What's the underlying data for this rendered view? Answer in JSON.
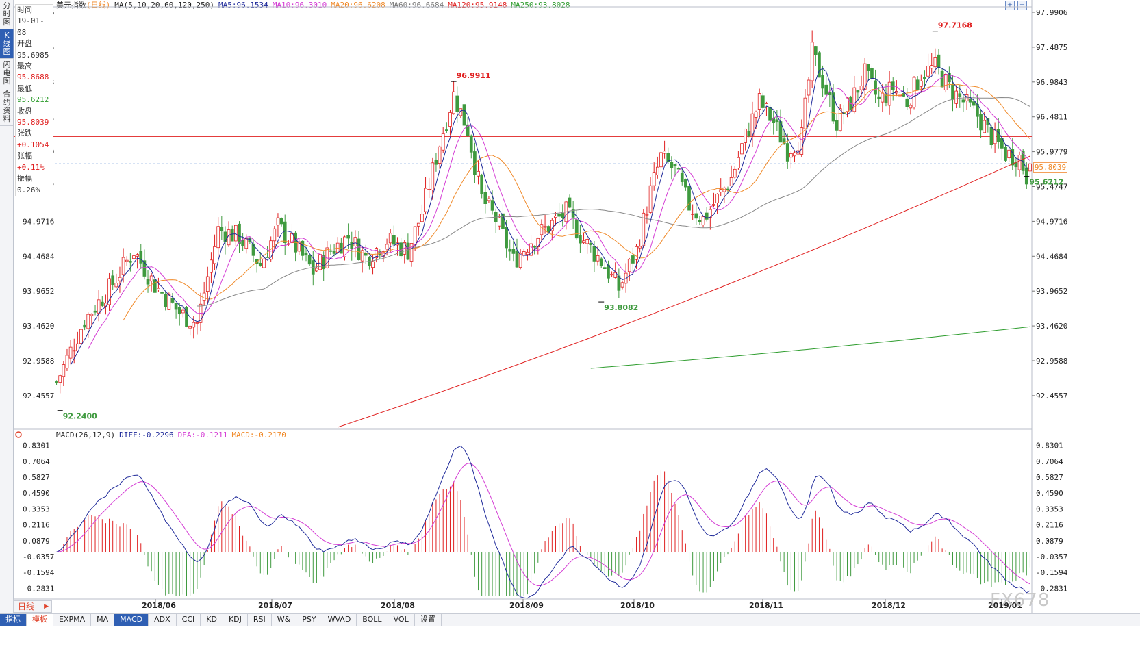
{
  "header": {
    "title": "美元指数",
    "period_tag": "(日线)",
    "ma_legend": [
      {
        "text": "MA(5,10,20,60,120,250)",
        "color": "#222222"
      },
      {
        "text": "MA5:96.1534",
        "color": "#1f2a9a"
      },
      {
        "text": "MA10:96.3010",
        "color": "#d43bd4"
      },
      {
        "text": "MA20:96.6208",
        "color": "#f08a2a"
      },
      {
        "text": "MA60:96.6684",
        "color": "#777777"
      },
      {
        "text": "MA120:95.9148",
        "color": "#e02020"
      },
      {
        "text": "MA250:93.8028",
        "color": "#2f9d2f"
      }
    ]
  },
  "left_tabs": [
    {
      "label": "分时图",
      "active": false
    },
    {
      "label": "K线图",
      "active": true
    },
    {
      "label": "闪电图",
      "active": false
    },
    {
      "label": "合约资料",
      "active": false
    }
  ],
  "info_panel": {
    "time_label": "时间",
    "time_value": "19-01-08",
    "open_label": "开盘",
    "open_value": "95.6985",
    "high_label": "最高",
    "high_value": "95.8688",
    "low_label": "最低",
    "low_value": "95.6212",
    "close_label": "收盘",
    "close_value": "95.8039",
    "change_label": "张跌",
    "change_value": "+0.1054",
    "pct_label": "张幅",
    "pct_value": "+0.11%",
    "amp_label": "振幅",
    "amp_value": "0.26%"
  },
  "price_tag": "95.8039",
  "macd_legend": [
    {
      "text": "MACD(26,12,9)",
      "color": "#222222"
    },
    {
      "text": "DIFF:-0.2296",
      "color": "#1f2a9a"
    },
    {
      "text": "DEA:-0.1211",
      "color": "#d43bd4"
    },
    {
      "text": "MACD:-0.2170",
      "color": "#f08a2a"
    }
  ],
  "period_selector": "日线",
  "bottom_tabs": [
    {
      "label": "指标",
      "style": "sel1"
    },
    {
      "label": "模板",
      "style": "sel2"
    },
    {
      "label": "EXPMA",
      "style": ""
    },
    {
      "label": "MA",
      "style": ""
    },
    {
      "label": "MACD",
      "style": "sel3"
    },
    {
      "label": "ADX",
      "style": ""
    },
    {
      "label": "CCI",
      "style": ""
    },
    {
      "label": "KD",
      "style": ""
    },
    {
      "label": "KDJ",
      "style": ""
    },
    {
      "label": "RSI",
      "style": ""
    },
    {
      "label": "W&",
      "style": ""
    },
    {
      "label": "PSY",
      "style": ""
    },
    {
      "label": "WVAD",
      "style": ""
    },
    {
      "label": "BOLL",
      "style": ""
    },
    {
      "label": "VOL",
      "style": ""
    },
    {
      "label": "设置",
      "style": ""
    }
  ],
  "watermark": "FX678",
  "chart_data": {
    "type": "candlestick",
    "colors": {
      "up": "#e02020",
      "down": "#3f9a3f",
      "ma5": "#1f2a9a",
      "ma10": "#d43bd4",
      "ma20": "#f08a2a",
      "ma60": "#888888",
      "ma120": "#e02020",
      "ma250": "#2f9d2f",
      "resistance": "#e02020"
    },
    "price_axis_ticks": [
      "97.9906",
      "97.4875",
      "96.9843",
      "96.4811",
      "95.9779",
      "95.4747",
      "94.9716",
      "94.4684",
      "93.9652",
      "93.4620",
      "92.9588",
      "92.4557"
    ],
    "macd_axis_ticks": [
      "0.8301",
      "0.7064",
      "0.5827",
      "0.4590",
      "0.3353",
      "0.2116",
      "0.0879",
      "-0.0357",
      "-0.1594",
      "-0.2831"
    ],
    "x_tick_labels": [
      "2018/06",
      "2018/07",
      "2018/08",
      "2018/09",
      "2018/10",
      "2018/11",
      "2018/12",
      "2019/01"
    ],
    "price_range": [
      91.98,
      98.05
    ],
    "macd_range": [
      -0.34,
      0.86
    ],
    "annotations": [
      {
        "text": "92.2400",
        "value": 92.24,
        "kind": "low"
      },
      {
        "text": "96.9911",
        "value": 96.9911,
        "kind": "high"
      },
      {
        "text": "93.8082",
        "value": 93.8082,
        "kind": "low"
      },
      {
        "text": "97.7168",
        "value": 97.7168,
        "kind": "high"
      },
      {
        "text": "95.6212",
        "value": 95.6212,
        "kind": "low"
      }
    ],
    "resistance_level": 96.2,
    "last_close": 95.8039,
    "close_path": [
      [
        0,
        92.65
      ],
      [
        8,
        93.55
      ],
      [
        15,
        94.0
      ],
      [
        22,
        94.55
      ],
      [
        28,
        94.05
      ],
      [
        35,
        93.65
      ],
      [
        40,
        93.5
      ],
      [
        46,
        94.85
      ],
      [
        52,
        94.75
      ],
      [
        58,
        94.35
      ],
      [
        63,
        94.9
      ],
      [
        68,
        94.6
      ],
      [
        73,
        94.25
      ],
      [
        78,
        94.55
      ],
      [
        83,
        94.75
      ],
      [
        88,
        94.45
      ],
      [
        94,
        94.7
      ],
      [
        100,
        94.55
      ],
      [
        104,
        95.1
      ],
      [
        109,
        96.1
      ],
      [
        113,
        96.8
      ],
      [
        117,
        96.3
      ],
      [
        121,
        95.3
      ],
      [
        125,
        95.0
      ],
      [
        130,
        94.4
      ],
      [
        135,
        94.7
      ],
      [
        140,
        94.9
      ],
      [
        145,
        95.1
      ],
      [
        150,
        94.7
      ],
      [
        155,
        94.4
      ],
      [
        160,
        94.0
      ],
      [
        165,
        94.55
      ],
      [
        169,
        95.4
      ],
      [
        172,
        95.9
      ],
      [
        176,
        95.7
      ],
      [
        180,
        95.2
      ],
      [
        184,
        95.0
      ],
      [
        188,
        95.3
      ],
      [
        192,
        95.6
      ],
      [
        196,
        96.2
      ],
      [
        200,
        96.7
      ],
      [
        204,
        96.4
      ],
      [
        208,
        96.0
      ],
      [
        212,
        96.2
      ],
      [
        215,
        97.4
      ],
      [
        218,
        97.0
      ],
      [
        222,
        96.4
      ],
      [
        226,
        96.7
      ],
      [
        230,
        97.1
      ],
      [
        234,
        96.7
      ],
      [
        238,
        96.9
      ],
      [
        242,
        96.7
      ],
      [
        246,
        97.1
      ],
      [
        250,
        97.2
      ],
      [
        254,
        96.9
      ],
      [
        258,
        96.7
      ],
      [
        262,
        96.5
      ],
      [
        266,
        96.2
      ],
      [
        270,
        95.95
      ],
      [
        274,
        95.9
      ],
      [
        276,
        95.6212
      ],
      [
        277,
        95.8039
      ]
    ],
    "ma_levels_at_last_bar": {
      "ma5": 96.1534,
      "ma10": 96.301,
      "ma20": 96.6208,
      "ma60": 96.6684,
      "ma120": 95.9148,
      "ma250": 93.8028
    }
  }
}
